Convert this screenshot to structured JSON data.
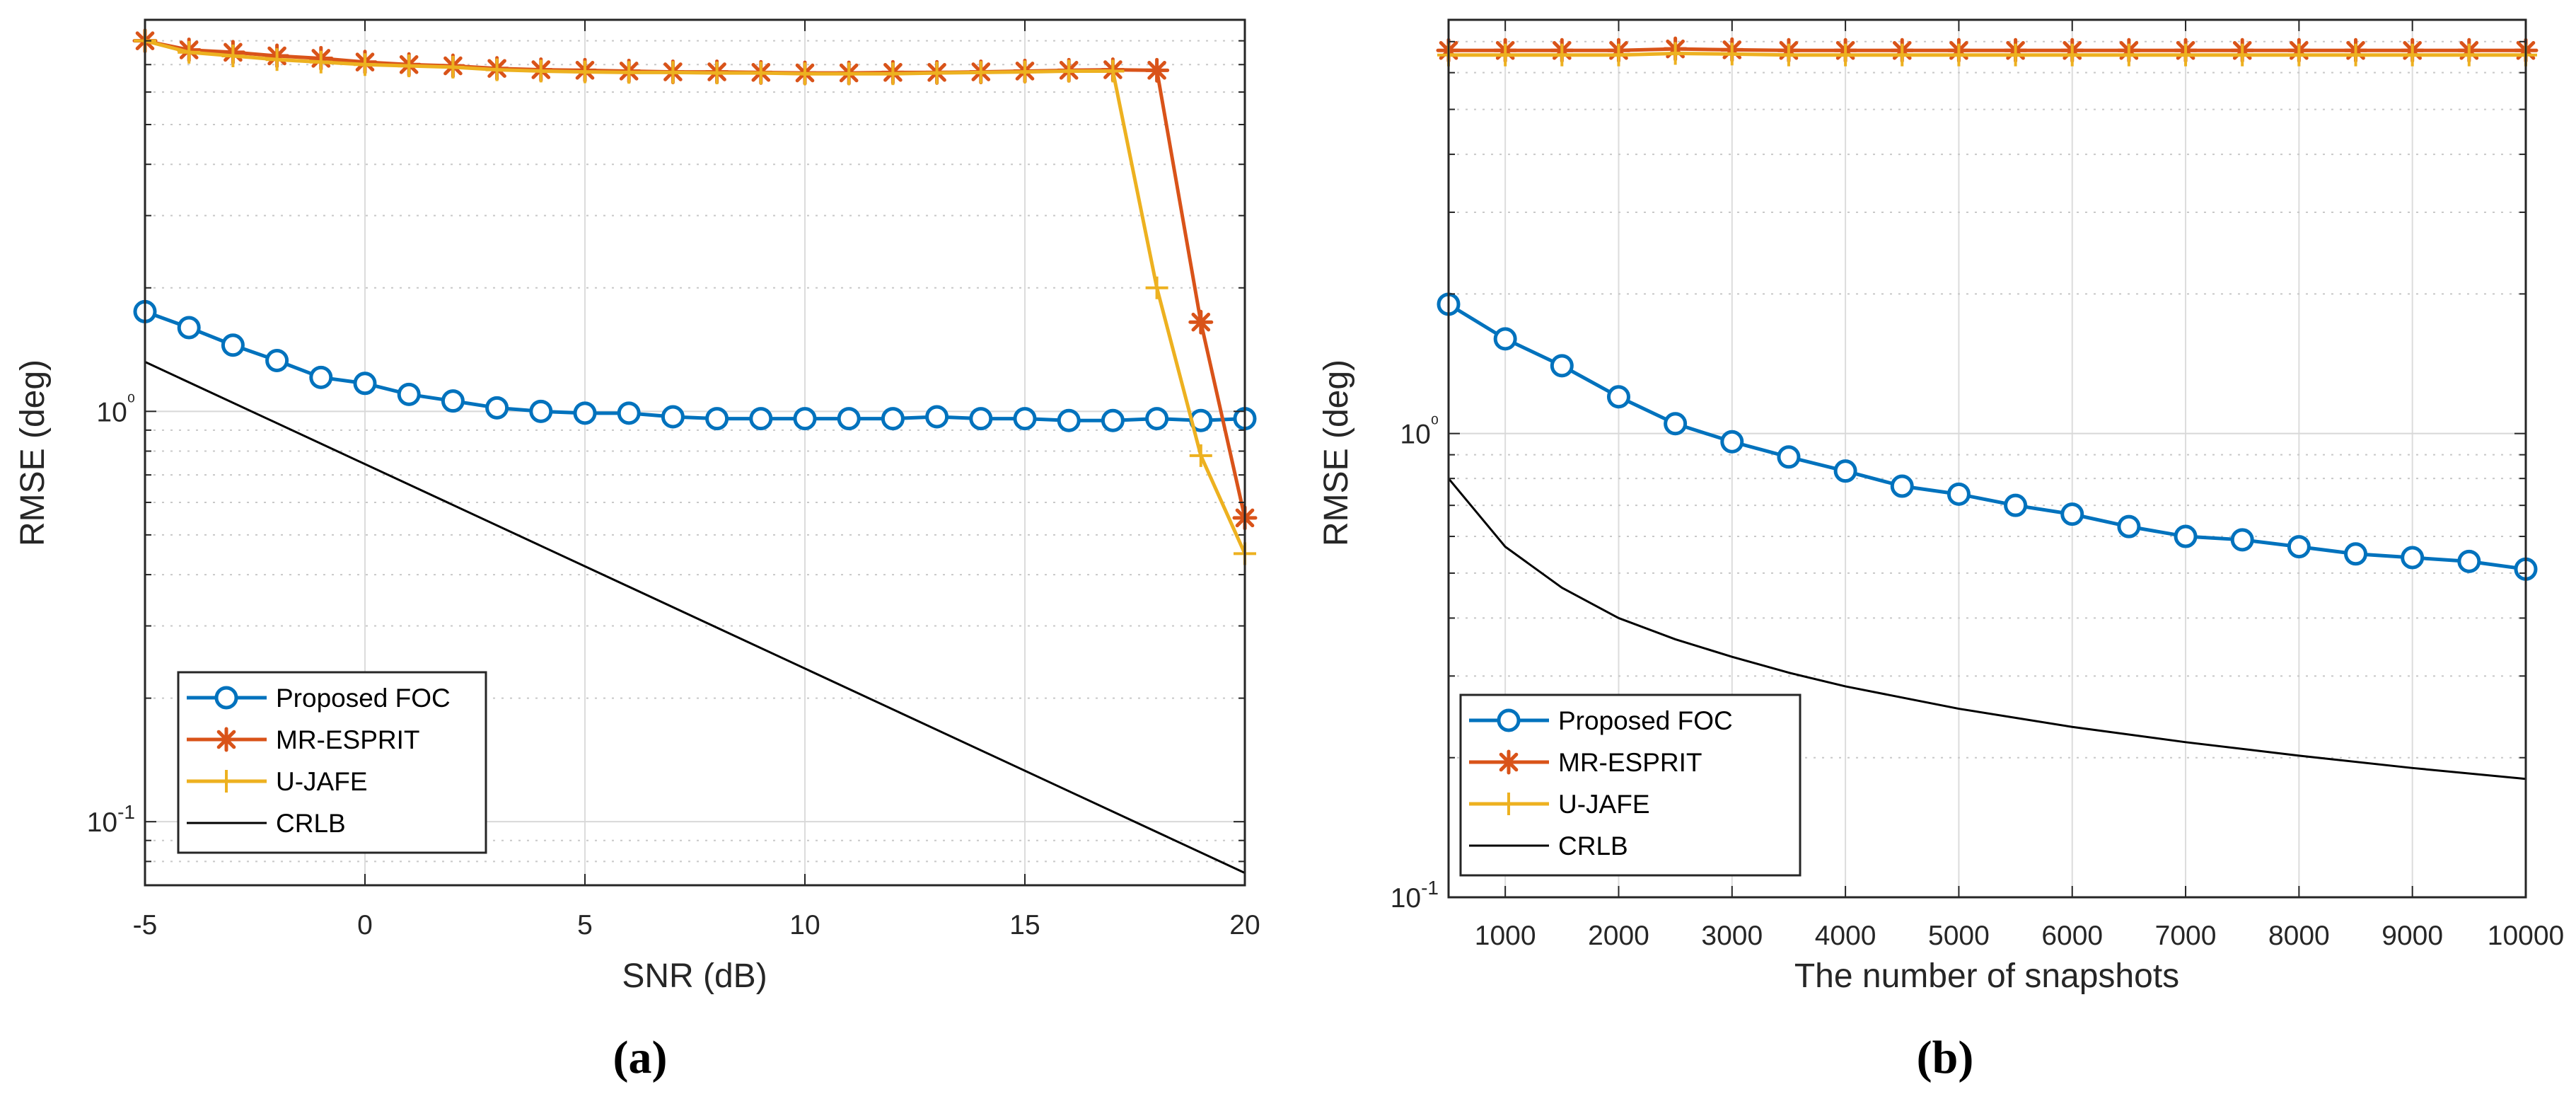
{
  "chart_data": [
    {
      "type": "line",
      "panel": "(a)",
      "xlabel": "SNR (dB)",
      "ylabel": "RMSE (deg)",
      "yscale": "log",
      "xlim": [
        -5,
        20
      ],
      "ylim": [
        0.07,
        9
      ],
      "xticks": [
        -5,
        0,
        5,
        10,
        15,
        20
      ],
      "xtick_labels": [
        "-5",
        "0",
        "5",
        "10",
        "15",
        "20"
      ],
      "yticks": [
        0.1,
        1
      ],
      "ytick_labels": [
        "10-1",
        "10⁰"
      ],
      "legend_position": "bottom-left",
      "grid": true,
      "series": [
        {
          "name": "Proposed FOC",
          "color": "#0072BD",
          "marker": "circle",
          "x": [
            -5,
            -4,
            -3,
            -2,
            -1,
            0,
            1,
            2,
            3,
            4,
            5,
            6,
            7,
            8,
            9,
            10,
            11,
            12,
            13,
            14,
            15,
            16,
            17,
            18,
            19,
            20
          ],
          "y": [
            1.75,
            1.6,
            1.45,
            1.33,
            1.21,
            1.17,
            1.1,
            1.06,
            1.02,
            1.0,
            0.99,
            0.99,
            0.97,
            0.96,
            0.96,
            0.96,
            0.96,
            0.96,
            0.97,
            0.96,
            0.96,
            0.95,
            0.95,
            0.96,
            0.95,
            0.96
          ]
        },
        {
          "name": "MR-ESPRIT",
          "color": "#D95319",
          "marker": "star",
          "x": [
            -5,
            -4,
            -3,
            -2,
            -1,
            0,
            1,
            2,
            3,
            4,
            5,
            6,
            7,
            8,
            9,
            10,
            11,
            12,
            13,
            14,
            15,
            16,
            17,
            18,
            19,
            20
          ],
          "y": [
            8.0,
            7.6,
            7.5,
            7.35,
            7.25,
            7.1,
            7.0,
            6.95,
            6.85,
            6.8,
            6.78,
            6.75,
            6.72,
            6.72,
            6.7,
            6.68,
            6.68,
            6.7,
            6.7,
            6.72,
            6.75,
            6.78,
            6.8,
            6.78,
            1.65,
            0.55
          ]
        },
        {
          "name": "U-JAFE",
          "color": "#EDB120",
          "marker": "plus",
          "x": [
            -5,
            -4,
            -3,
            -2,
            -1,
            0,
            1,
            2,
            3,
            4,
            5,
            6,
            7,
            8,
            9,
            10,
            11,
            12,
            13,
            14,
            15,
            16,
            17,
            18,
            19,
            20
          ],
          "y": [
            8.0,
            7.5,
            7.35,
            7.2,
            7.1,
            7.0,
            6.95,
            6.9,
            6.8,
            6.75,
            6.72,
            6.7,
            6.7,
            6.68,
            6.68,
            6.65,
            6.65,
            6.65,
            6.68,
            6.7,
            6.72,
            6.75,
            6.75,
            2.0,
            0.78,
            0.45
          ]
        },
        {
          "name": "CRLB",
          "color": "#000000",
          "marker": "none",
          "x": [
            -5,
            20
          ],
          "y": [
            1.32,
            0.075
          ]
        }
      ]
    },
    {
      "type": "line",
      "panel": "(b)",
      "xlabel": "The number of snapshots",
      "ylabel": "RMSE (deg)",
      "yscale": "log",
      "xlim": [
        500,
        10000
      ],
      "ylim": [
        0.1,
        7.8
      ],
      "xticks": [
        1000,
        2000,
        3000,
        4000,
        5000,
        6000,
        7000,
        8000,
        9000,
        10000
      ],
      "xtick_labels": [
        "1000",
        "2000",
        "3000",
        "4000",
        "5000",
        "6000",
        "7000",
        "8000",
        "9000",
        "10000"
      ],
      "yticks": [
        0.1,
        1
      ],
      "ytick_labels": [
        "10-1",
        "10⁰"
      ],
      "legend_position": "bottom-left",
      "grid": true,
      "series": [
        {
          "name": "Proposed FOC",
          "color": "#0072BD",
          "marker": "circle",
          "x": [
            500,
            1000,
            1500,
            2000,
            2500,
            3000,
            3500,
            4000,
            4500,
            5000,
            5500,
            6000,
            6500,
            7000,
            7500,
            8000,
            8500,
            9000,
            9500,
            10000
          ],
          "y": [
            1.9,
            1.6,
            1.4,
            1.2,
            1.05,
            0.96,
            0.89,
            0.83,
            0.77,
            0.74,
            0.7,
            0.67,
            0.63,
            0.6,
            0.59,
            0.57,
            0.55,
            0.54,
            0.53,
            0.51
          ]
        },
        {
          "name": "MR-ESPRIT",
          "color": "#D95319",
          "marker": "star",
          "x": [
            500,
            1000,
            1500,
            2000,
            2500,
            3000,
            3500,
            4000,
            4500,
            5000,
            5500,
            6000,
            6500,
            7000,
            7500,
            8000,
            8500,
            9000,
            9500,
            10000
          ],
          "y": [
            6.7,
            6.7,
            6.7,
            6.7,
            6.75,
            6.72,
            6.7,
            6.7,
            6.7,
            6.7,
            6.7,
            6.7,
            6.7,
            6.7,
            6.7,
            6.7,
            6.7,
            6.7,
            6.7,
            6.7
          ]
        },
        {
          "name": "U-JAFE",
          "color": "#EDB120",
          "marker": "plus",
          "x": [
            500,
            1000,
            1500,
            2000,
            2500,
            3000,
            3500,
            4000,
            4500,
            5000,
            5500,
            6000,
            6500,
            7000,
            7500,
            8000,
            8500,
            9000,
            9500,
            10000
          ],
          "y": [
            6.55,
            6.55,
            6.55,
            6.55,
            6.6,
            6.58,
            6.55,
            6.55,
            6.55,
            6.55,
            6.55,
            6.55,
            6.55,
            6.55,
            6.55,
            6.55,
            6.55,
            6.55,
            6.55,
            6.55
          ]
        },
        {
          "name": "CRLB",
          "color": "#000000",
          "marker": "none",
          "x": [
            500,
            1000,
            1500,
            2000,
            2500,
            3000,
            3500,
            4000,
            5000,
            6000,
            7000,
            8000,
            9000,
            10000
          ],
          "y": [
            0.8,
            0.57,
            0.465,
            0.4,
            0.36,
            0.33,
            0.305,
            0.285,
            0.255,
            0.233,
            0.216,
            0.202,
            0.19,
            0.18
          ]
        }
      ]
    }
  ],
  "captions": [
    "(a)",
    "(b)"
  ]
}
